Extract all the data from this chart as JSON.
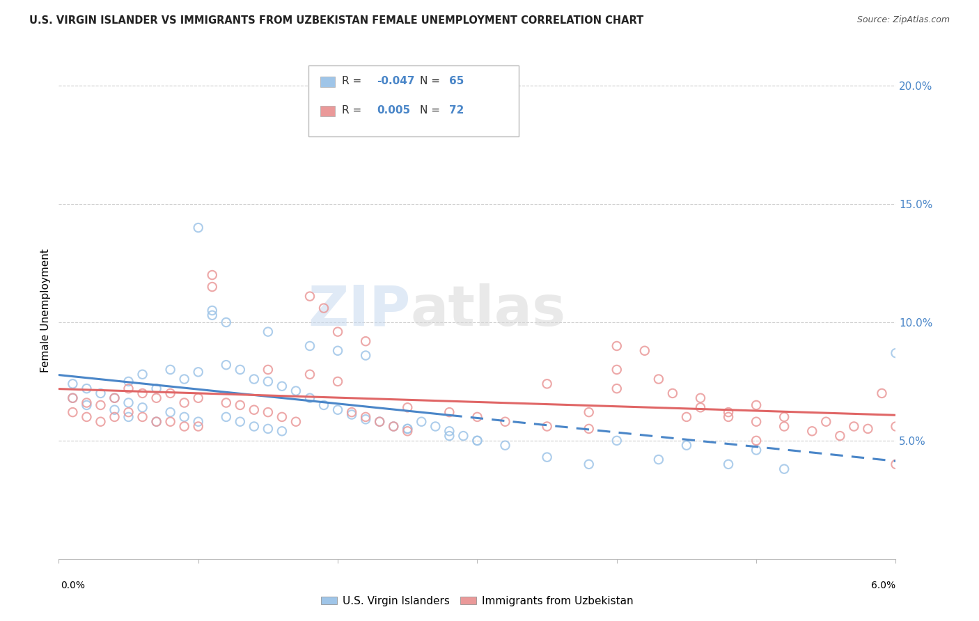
{
  "title": "U.S. VIRGIN ISLANDER VS IMMIGRANTS FROM UZBEKISTAN FEMALE UNEMPLOYMENT CORRELATION CHART",
  "source": "Source: ZipAtlas.com",
  "ylabel": "Female Unemployment",
  "legend1_label": "U.S. Virgin Islanders",
  "legend2_label": "Immigrants from Uzbekistan",
  "color_blue": "#9fc5e8",
  "color_pink": "#ea9999",
  "color_line_blue": "#4a86c8",
  "color_line_pink": "#e06666",
  "watermark_zip": "ZIP",
  "watermark_atlas": "atlas",
  "right_yticks": [
    0.05,
    0.1,
    0.15,
    0.2
  ],
  "right_yticklabels": [
    "5.0%",
    "10.0%",
    "15.0%",
    "20.0%"
  ],
  "xlim": [
    0.0,
    0.06
  ],
  "ylim": [
    0.0,
    0.21
  ],
  "blue_x": [
    0.001,
    0.001,
    0.002,
    0.002,
    0.003,
    0.004,
    0.004,
    0.005,
    0.005,
    0.005,
    0.006,
    0.006,
    0.007,
    0.007,
    0.008,
    0.008,
    0.009,
    0.009,
    0.01,
    0.01,
    0.011,
    0.011,
    0.012,
    0.012,
    0.013,
    0.013,
    0.014,
    0.014,
    0.015,
    0.015,
    0.016,
    0.016,
    0.017,
    0.018,
    0.019,
    0.02,
    0.021,
    0.022,
    0.023,
    0.024,
    0.025,
    0.026,
    0.027,
    0.028,
    0.029,
    0.03,
    0.01,
    0.012,
    0.015,
    0.018,
    0.02,
    0.022,
    0.025,
    0.028,
    0.03,
    0.032,
    0.035,
    0.038,
    0.04,
    0.043,
    0.045,
    0.048,
    0.05,
    0.052,
    0.06
  ],
  "blue_y": [
    0.074,
    0.068,
    0.072,
    0.065,
    0.07,
    0.068,
    0.063,
    0.075,
    0.066,
    0.06,
    0.078,
    0.064,
    0.072,
    0.058,
    0.08,
    0.062,
    0.076,
    0.06,
    0.079,
    0.058,
    0.105,
    0.103,
    0.082,
    0.06,
    0.08,
    0.058,
    0.076,
    0.056,
    0.075,
    0.055,
    0.073,
    0.054,
    0.071,
    0.068,
    0.065,
    0.063,
    0.061,
    0.059,
    0.058,
    0.056,
    0.055,
    0.058,
    0.056,
    0.054,
    0.052,
    0.05,
    0.14,
    0.1,
    0.096,
    0.09,
    0.088,
    0.086,
    0.055,
    0.052,
    0.05,
    0.048,
    0.043,
    0.04,
    0.05,
    0.042,
    0.048,
    0.04,
    0.046,
    0.038,
    0.087
  ],
  "pink_x": [
    0.001,
    0.001,
    0.002,
    0.002,
    0.003,
    0.003,
    0.004,
    0.004,
    0.005,
    0.005,
    0.006,
    0.006,
    0.007,
    0.007,
    0.008,
    0.008,
    0.009,
    0.009,
    0.01,
    0.01,
    0.011,
    0.011,
    0.012,
    0.013,
    0.014,
    0.015,
    0.016,
    0.017,
    0.018,
    0.019,
    0.02,
    0.021,
    0.022,
    0.023,
    0.024,
    0.025,
    0.015,
    0.018,
    0.02,
    0.022,
    0.025,
    0.028,
    0.03,
    0.032,
    0.035,
    0.038,
    0.04,
    0.042,
    0.044,
    0.046,
    0.048,
    0.05,
    0.052,
    0.054,
    0.056,
    0.058,
    0.04,
    0.043,
    0.046,
    0.048,
    0.05,
    0.052,
    0.055,
    0.057,
    0.059,
    0.06,
    0.035,
    0.038,
    0.04,
    0.045,
    0.05,
    0.06
  ],
  "pink_y": [
    0.068,
    0.062,
    0.066,
    0.06,
    0.065,
    0.058,
    0.068,
    0.06,
    0.072,
    0.062,
    0.07,
    0.06,
    0.068,
    0.058,
    0.07,
    0.058,
    0.066,
    0.056,
    0.068,
    0.056,
    0.12,
    0.115,
    0.066,
    0.065,
    0.063,
    0.062,
    0.06,
    0.058,
    0.111,
    0.106,
    0.096,
    0.062,
    0.06,
    0.058,
    0.056,
    0.054,
    0.08,
    0.078,
    0.075,
    0.092,
    0.064,
    0.062,
    0.06,
    0.058,
    0.056,
    0.055,
    0.09,
    0.088,
    0.07,
    0.068,
    0.06,
    0.058,
    0.056,
    0.054,
    0.052,
    0.055,
    0.08,
    0.076,
    0.064,
    0.062,
    0.065,
    0.06,
    0.058,
    0.056,
    0.07,
    0.056,
    0.074,
    0.062,
    0.072,
    0.06,
    0.05,
    0.04
  ]
}
